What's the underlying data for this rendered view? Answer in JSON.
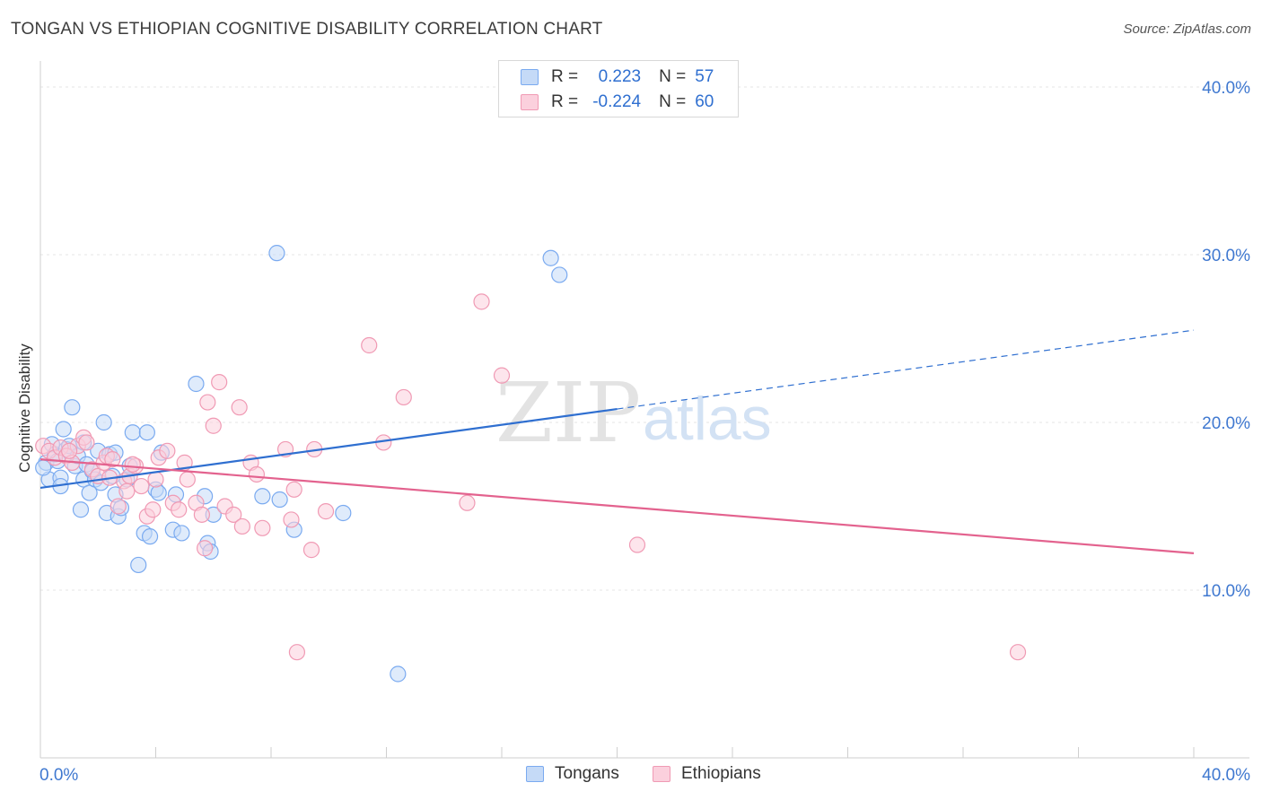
{
  "title": "TONGAN VS ETHIOPIAN COGNITIVE DISABILITY CORRELATION CHART",
  "source": "Source: ZipAtlas.com",
  "watermark": {
    "zip": "ZIP",
    "atlas": "atlas"
  },
  "legend": {
    "r_label": "R =",
    "n_label": "N =",
    "rows": [
      {
        "r": "0.223",
        "n": "57"
      },
      {
        "r": "-0.224",
        "n": "60"
      }
    ]
  },
  "chart_data": {
    "type": "scatter",
    "title": "TONGAN VS ETHIOPIAN COGNITIVE DISABILITY CORRELATION CHART",
    "xlabel": "",
    "ylabel": "Cognitive Disability",
    "xlim": [
      0,
      40
    ],
    "ylim": [
      0,
      40
    ],
    "x_tick_labels": [
      "0.0%",
      "40.0%"
    ],
    "y_tick_labels": [
      "10.0%",
      "20.0%",
      "30.0%",
      "40.0%"
    ],
    "y_ticks": [
      10,
      20,
      30,
      40
    ],
    "grid": true,
    "legend_position": "top-center",
    "series": [
      {
        "name": "Tongans",
        "color": "#7aaaf0",
        "fill": "#c5daf7",
        "line_color": "#2f6fd0",
        "r": 0.223,
        "n": 57,
        "trend": {
          "x0": 0.0,
          "y0": 16.1,
          "x1": 20.0,
          "y1": 20.8,
          "x_dash_end": 40.0,
          "y_dash_end": 25.5
        },
        "points": [
          [
            0.2,
            17.6
          ],
          [
            0.3,
            16.6
          ],
          [
            0.5,
            18.1
          ],
          [
            0.6,
            17.7
          ],
          [
            0.7,
            16.7
          ],
          [
            0.7,
            16.2
          ],
          [
            0.8,
            19.6
          ],
          [
            0.9,
            18.4
          ],
          [
            1.0,
            18.6
          ],
          [
            1.1,
            20.9
          ],
          [
            1.2,
            17.4
          ],
          [
            1.3,
            18.0
          ],
          [
            1.4,
            14.8
          ],
          [
            1.5,
            16.6
          ],
          [
            1.6,
            17.5
          ],
          [
            1.7,
            15.8
          ],
          [
            1.8,
            17.1
          ],
          [
            1.9,
            16.6
          ],
          [
            2.0,
            18.3
          ],
          [
            2.1,
            16.4
          ],
          [
            2.2,
            20.0
          ],
          [
            2.3,
            14.6
          ],
          [
            2.4,
            18.1
          ],
          [
            2.5,
            16.8
          ],
          [
            2.6,
            15.7
          ],
          [
            2.6,
            18.2
          ],
          [
            2.7,
            14.4
          ],
          [
            2.8,
            14.9
          ],
          [
            3.0,
            16.6
          ],
          [
            3.1,
            17.4
          ],
          [
            3.2,
            19.4
          ],
          [
            3.4,
            11.5
          ],
          [
            3.6,
            13.4
          ],
          [
            3.7,
            19.4
          ],
          [
            3.8,
            13.2
          ],
          [
            4.0,
            16.0
          ],
          [
            4.1,
            15.8
          ],
          [
            4.2,
            18.2
          ],
          [
            4.6,
            13.6
          ],
          [
            4.7,
            15.7
          ],
          [
            4.9,
            13.4
          ],
          [
            5.4,
            22.3
          ],
          [
            5.7,
            15.6
          ],
          [
            5.8,
            12.8
          ],
          [
            5.9,
            12.3
          ],
          [
            6.0,
            14.5
          ],
          [
            7.7,
            15.6
          ],
          [
            8.2,
            30.1
          ],
          [
            8.3,
            15.4
          ],
          [
            8.8,
            13.6
          ],
          [
            10.5,
            14.6
          ],
          [
            17.7,
            29.8
          ],
          [
            18.0,
            28.8
          ],
          [
            12.4,
            5.0
          ],
          [
            0.1,
            17.3
          ],
          [
            0.4,
            18.7
          ],
          [
            1.5,
            18.8
          ]
        ]
      },
      {
        "name": "Ethiopians",
        "color": "#f09ab4",
        "fill": "#fbd0dd",
        "line_color": "#e3628e",
        "r": -0.224,
        "n": 60,
        "trend": {
          "x0": 0.0,
          "y0": 17.8,
          "x1": 40.0,
          "y1": 12.2
        },
        "points": [
          [
            0.1,
            18.6
          ],
          [
            0.3,
            18.3
          ],
          [
            0.5,
            17.9
          ],
          [
            0.7,
            18.5
          ],
          [
            0.9,
            18.0
          ],
          [
            1.1,
            17.6
          ],
          [
            1.3,
            18.6
          ],
          [
            1.5,
            19.1
          ],
          [
            1.6,
            18.8
          ],
          [
            1.8,
            17.2
          ],
          [
            2.0,
            16.8
          ],
          [
            2.2,
            17.6
          ],
          [
            2.3,
            18.0
          ],
          [
            2.5,
            17.8
          ],
          [
            2.7,
            15.0
          ],
          [
            2.9,
            16.5
          ],
          [
            3.0,
            15.9
          ],
          [
            3.1,
            16.8
          ],
          [
            3.3,
            17.4
          ],
          [
            3.5,
            16.2
          ],
          [
            3.7,
            14.4
          ],
          [
            3.9,
            14.8
          ],
          [
            4.0,
            16.6
          ],
          [
            4.1,
            17.9
          ],
          [
            4.4,
            18.3
          ],
          [
            4.6,
            15.2
          ],
          [
            4.8,
            14.8
          ],
          [
            5.0,
            17.6
          ],
          [
            5.1,
            16.6
          ],
          [
            5.4,
            15.2
          ],
          [
            5.6,
            14.5
          ],
          [
            5.7,
            12.5
          ],
          [
            5.8,
            21.2
          ],
          [
            6.0,
            19.8
          ],
          [
            6.2,
            22.4
          ],
          [
            6.4,
            15.0
          ],
          [
            6.7,
            14.5
          ],
          [
            6.9,
            20.9
          ],
          [
            7.0,
            13.8
          ],
          [
            7.3,
            17.6
          ],
          [
            7.5,
            16.9
          ],
          [
            7.7,
            13.7
          ],
          [
            8.5,
            18.4
          ],
          [
            8.7,
            14.2
          ],
          [
            8.8,
            16.0
          ],
          [
            8.9,
            6.3
          ],
          [
            9.4,
            12.4
          ],
          [
            9.5,
            18.4
          ],
          [
            9.9,
            14.7
          ],
          [
            11.4,
            24.6
          ],
          [
            11.9,
            18.8
          ],
          [
            12.6,
            21.5
          ],
          [
            14.8,
            15.2
          ],
          [
            15.3,
            27.2
          ],
          [
            16.0,
            22.8
          ],
          [
            20.7,
            12.7
          ],
          [
            33.9,
            6.3
          ],
          [
            1.0,
            18.3
          ],
          [
            2.4,
            16.7
          ],
          [
            3.2,
            17.5
          ]
        ]
      }
    ]
  }
}
